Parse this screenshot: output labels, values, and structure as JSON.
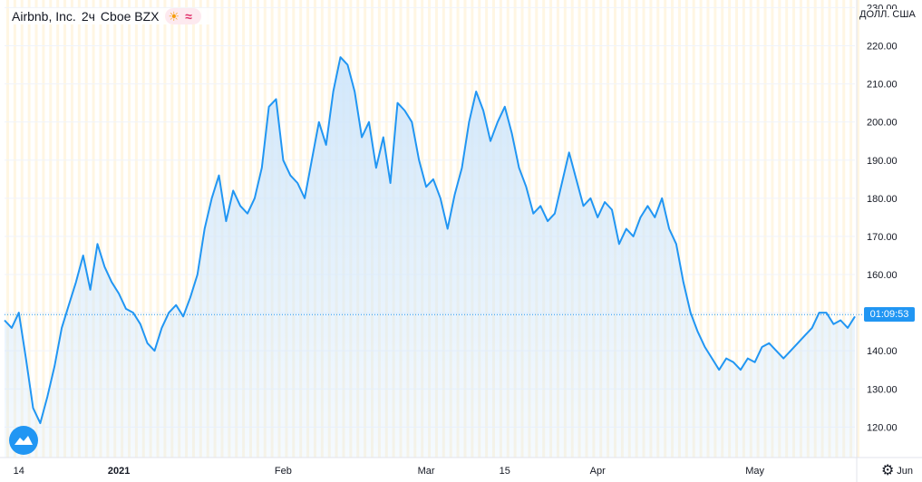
{
  "header": {
    "symbol": "Airbnb, Inc.",
    "interval": "2ч",
    "exchange": "Cboe BZX",
    "icons": [
      "sun-icon",
      "approx-icon"
    ]
  },
  "axis": {
    "currency": "ДОЛЛ. США"
  },
  "price_tag": "01:09:53",
  "colors": {
    "line": "#2196f3",
    "fill_top": "#cfe6fb",
    "grid": "#f0f3fa",
    "session": "#fff6e3"
  },
  "chart_data": {
    "type": "area",
    "title": "",
    "xlabel": "",
    "ylabel": "",
    "ylim": [
      112,
      232
    ],
    "y_ticks": [
      120,
      130,
      140,
      150,
      160,
      170,
      180,
      190,
      200,
      210,
      220,
      230
    ],
    "y_tick_labels": [
      "120.00",
      "130.00",
      "140.00",
      "150.00",
      "160.00",
      "170.00",
      "180.00",
      "190.00",
      "200.00",
      "210.00",
      "220.00",
      "230.00"
    ],
    "x_ticks": [
      {
        "label": "14",
        "index": 2
      },
      {
        "label": "2021",
        "index": 16
      },
      {
        "label": "Feb",
        "index": 39
      },
      {
        "label": "Mar",
        "index": 59
      },
      {
        "label": "15",
        "index": 70
      },
      {
        "label": "Apr",
        "index": 83
      },
      {
        "label": "May",
        "index": 105
      },
      {
        "label": "Jun",
        "index": 126
      }
    ],
    "last_value": 149.5,
    "values": [
      148,
      146,
      150,
      138,
      125,
      121,
      128,
      136,
      146,
      152,
      158,
      165,
      156,
      168,
      162,
      158,
      155,
      151,
      150,
      147,
      142,
      140,
      146,
      150,
      152,
      149,
      154,
      160,
      172,
      180,
      186,
      174,
      182,
      178,
      176,
      180,
      188,
      204,
      206,
      190,
      186,
      184,
      180,
      190,
      200,
      194,
      208,
      217,
      215,
      208,
      196,
      200,
      188,
      196,
      184,
      205,
      203,
      200,
      190,
      183,
      185,
      180,
      172,
      181,
      188,
      200,
      208,
      203,
      195,
      200,
      204,
      197,
      188,
      183,
      176,
      178,
      174,
      176,
      184,
      192,
      185,
      178,
      180,
      175,
      179,
      177,
      168,
      172,
      170,
      175,
      178,
      175,
      180,
      172,
      168,
      158,
      150,
      145,
      141,
      138,
      135,
      138,
      137,
      135,
      138,
      137,
      141,
      142,
      140,
      138,
      140,
      142,
      144,
      146,
      150,
      150,
      147,
      148,
      146,
      149
    ]
  }
}
